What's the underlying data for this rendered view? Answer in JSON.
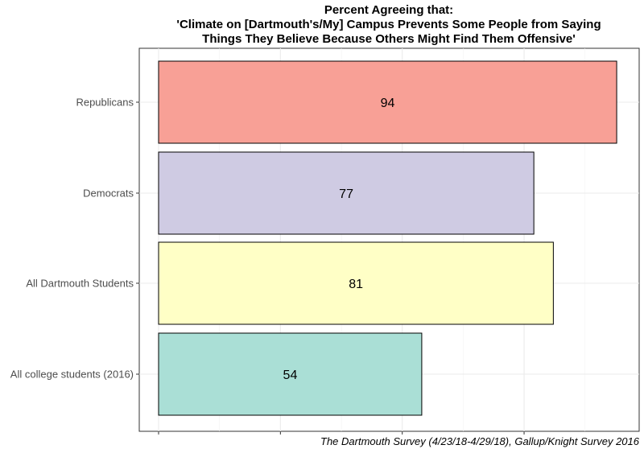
{
  "chart_data": {
    "type": "bar",
    "orientation": "horizontal",
    "title_lines": [
      "Percent Agreeing that:",
      "'Climate on [Dartmouth's/My] Campus Prevents Some People from Saying",
      "Things They Believe Because Others Might Find Them Offensive'"
    ],
    "categories": [
      "Republicans",
      "Democrats",
      "All Dartmouth Students",
      "All college students (2016)"
    ],
    "values": [
      94,
      77,
      81,
      54
    ],
    "colors": [
      "#f8a096",
      "#cfcbe3",
      "#ffffc6",
      "#aadfd6"
    ],
    "xlim": [
      0,
      100
    ],
    "xticks": [
      0,
      25,
      50,
      75,
      100
    ],
    "x_tick_labels_shown": false,
    "xlabel": "",
    "ylabel": "",
    "grid": true,
    "caption": "The Dartmouth Survey (4/23/18-4/29/18), Gallup/Knight Survey 2016"
  }
}
